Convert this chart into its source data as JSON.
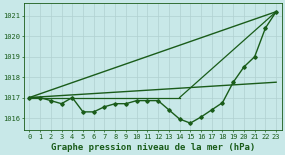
{
  "title": "Graphe pression niveau de la mer (hPa)",
  "bg_color": "#c8e8e8",
  "grid_color": "#b0d0d0",
  "line_color": "#1a5c1a",
  "xlim": [
    -0.5,
    23.5
  ],
  "ylim": [
    1015.4,
    1021.6
  ],
  "yticks": [
    1016,
    1017,
    1018,
    1019,
    1020,
    1021
  ],
  "xticks": [
    0,
    1,
    2,
    3,
    4,
    5,
    6,
    7,
    8,
    9,
    10,
    11,
    12,
    13,
    14,
    15,
    16,
    17,
    18,
    19,
    20,
    21,
    22,
    23
  ],
  "main_series": {
    "x": [
      0,
      1,
      2,
      3,
      4,
      5,
      6,
      7,
      8,
      9,
      10,
      11,
      12,
      13,
      14,
      15,
      16,
      17,
      18,
      19,
      20,
      21,
      22,
      23
    ],
    "y": [
      1017.0,
      1017.0,
      1016.85,
      1016.7,
      1017.0,
      1016.3,
      1016.3,
      1016.55,
      1016.7,
      1016.7,
      1016.85,
      1016.85,
      1016.85,
      1016.4,
      1015.95,
      1015.75,
      1016.05,
      1016.4,
      1016.75,
      1017.75,
      1018.5,
      1019.0,
      1020.4,
      1021.2
    ]
  },
  "straight_lines": [
    {
      "x": [
        0,
        23
      ],
      "y": [
        1017.0,
        1021.2
      ],
      "lw": 1.0
    },
    {
      "x": [
        0,
        23
      ],
      "y": [
        1017.0,
        1017.75
      ],
      "lw": 1.0
    },
    {
      "x": [
        0,
        14
      ],
      "y": [
        1017.0,
        1017.0
      ],
      "lw": 0.9
    },
    {
      "x": [
        14,
        23
      ],
      "y": [
        1017.0,
        1021.2
      ],
      "lw": 0.9
    }
  ],
  "font_color": "#1a5c1a",
  "title_fontsize": 6.5,
  "tick_fontsize": 5.0
}
